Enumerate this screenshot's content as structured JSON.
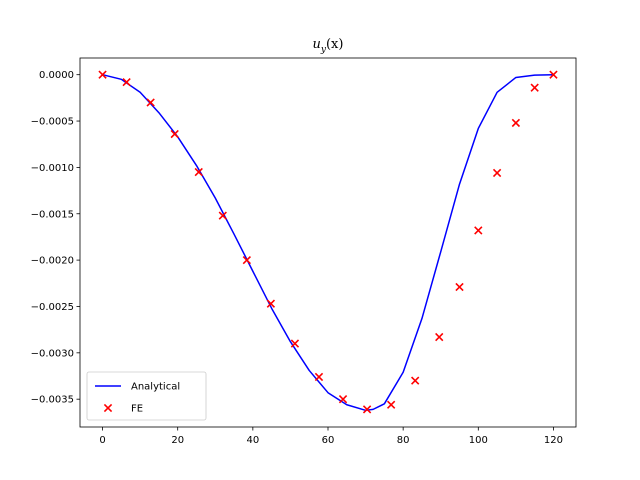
{
  "chart_data": {
    "type": "line",
    "title": "u_y(x)",
    "title_main": "u",
    "title_sub": "y",
    "title_arg": "(x)",
    "xlabel": "",
    "ylabel": "",
    "xlim": [
      -6,
      126
    ],
    "ylim": [
      -0.0038,
      0.00018
    ],
    "x_ticks": [
      0,
      20,
      40,
      60,
      80,
      100,
      120
    ],
    "x_tick_labels": [
      "0",
      "20",
      "40",
      "60",
      "80",
      "100",
      "120"
    ],
    "y_ticks": [
      0.0,
      -0.0005,
      -0.001,
      -0.0015,
      -0.002,
      -0.0025,
      -0.003,
      -0.0035
    ],
    "y_tick_labels": [
      "0.0000",
      "−0.0005",
      "−0.0010",
      "−0.0015",
      "−0.0020",
      "−0.0025",
      "−0.0030",
      "−0.0035"
    ],
    "grid": false,
    "legend_position": "lower-left",
    "series": [
      {
        "name": "Analytical",
        "kind": "line",
        "color": "#0000ff",
        "x": [
          0,
          5,
          10,
          15,
          20,
          25,
          30,
          35,
          40,
          45,
          50,
          55,
          60,
          65,
          70,
          72,
          75,
          80,
          85,
          90,
          95,
          100,
          105,
          110,
          115,
          120
        ],
        "y": [
          0.0,
          -5e-05,
          -0.00019,
          -0.00041,
          -0.00067,
          -0.00098,
          -0.00133,
          -0.00172,
          -0.00212,
          -0.00252,
          -0.00288,
          -0.00319,
          -0.00343,
          -0.00356,
          -0.00362,
          -0.00361,
          -0.00355,
          -0.00321,
          -0.00263,
          -0.00191,
          -0.00118,
          -0.00058,
          -0.00019,
          -3e-05,
          -5e-06,
          0.0
        ]
      },
      {
        "name": "FE",
        "kind": "scatter",
        "color": "#ff0000",
        "marker": "x",
        "x": [
          0,
          6.4,
          12.8,
          19.2,
          25.6,
          32.0,
          38.4,
          44.8,
          51.2,
          57.6,
          64.0,
          70.4,
          76.8,
          83.2,
          89.6,
          95.0,
          100.0,
          105.0,
          110.0,
          115.0,
          120.0
        ],
        "y": [
          0.0,
          -8e-05,
          -0.0003,
          -0.00064,
          -0.00105,
          -0.00152,
          -0.002,
          -0.00247,
          -0.0029,
          -0.00326,
          -0.0035,
          -0.00361,
          -0.00356,
          -0.0033,
          -0.00283,
          -0.00229,
          -0.00168,
          -0.00106,
          -0.00052,
          -0.00014,
          0.0
        ]
      }
    ]
  }
}
